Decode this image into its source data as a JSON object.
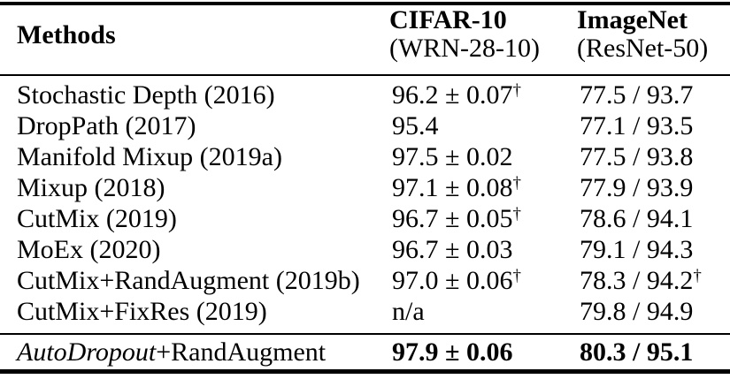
{
  "table": {
    "header": {
      "methods_label": "Methods",
      "cifar_column": {
        "title": "CIFAR-10",
        "subtitle": "(WRN-28-10)"
      },
      "imagenet_column": {
        "title": "ImageNet",
        "subtitle": "(ResNet-50)"
      }
    },
    "rows": [
      {
        "method": "Stochastic Depth (2016)",
        "cifar": "96.2 ± 0.07",
        "cifar_sup": "†",
        "imagenet": "77.5 / 93.7",
        "imagenet_sup": ""
      },
      {
        "method": "DropPath (2017)",
        "cifar": "95.4",
        "cifar_sup": "",
        "imagenet": "77.1 / 93.5",
        "imagenet_sup": ""
      },
      {
        "method": "Manifold Mixup (2019a)",
        "cifar": "97.5 ± 0.02",
        "cifar_sup": "",
        "imagenet": "77.5 / 93.8",
        "imagenet_sup": ""
      },
      {
        "method": "Mixup (2018)",
        "cifar": "97.1 ± 0.08",
        "cifar_sup": "†",
        "imagenet": "77.9 / 93.9",
        "imagenet_sup": ""
      },
      {
        "method": "CutMix (2019)",
        "cifar": "96.7 ± 0.05",
        "cifar_sup": "†",
        "imagenet": "78.6 / 94.1",
        "imagenet_sup": ""
      },
      {
        "method": "MoEx (2020)",
        "cifar": "96.7 ± 0.03",
        "cifar_sup": "",
        "imagenet": "79.1 / 94.3",
        "imagenet_sup": ""
      },
      {
        "method": "CutMix+RandAugment (2019b)",
        "cifar": "97.0 ± 0.06",
        "cifar_sup": "†",
        "imagenet": "78.3 / 94.2",
        "imagenet_sup": "†"
      },
      {
        "method": "CutMix+FixRes (2019)",
        "cifar": "n/a",
        "cifar_sup": "",
        "imagenet": "79.8 / 94.9",
        "imagenet_sup": ""
      }
    ],
    "footer_row": {
      "method_italic": "AutoDropout",
      "method_rest": "+RandAugment",
      "cifar": "97.9 ± 0.06",
      "imagenet": "80.3 / 95.1"
    },
    "colors": {
      "text": "#000000",
      "background": "#ffffff",
      "rule": "#000000"
    }
  }
}
